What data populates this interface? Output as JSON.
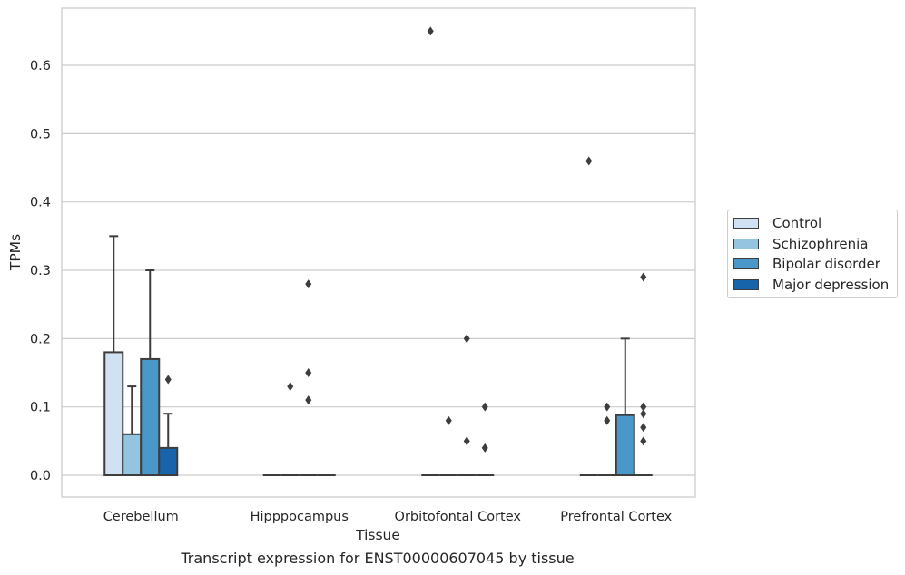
{
  "chart_data": {
    "type": "boxplot",
    "caption": "Transcript expression for ENST00000607045 by tissue",
    "xlabel": "Tissue",
    "ylabel": "TPMs",
    "ylim": [
      -0.032,
      0.685
    ],
    "yticks": [
      "0.0",
      "0.1",
      "0.2",
      "0.3",
      "0.4",
      "0.5",
      "0.6"
    ],
    "grid": true,
    "legend_position": "right",
    "categories": [
      "Cerebellum",
      "Hipppocampus",
      "Orbitofontal Cortex",
      "Prefrontal Cortex"
    ],
    "series": [
      {
        "name": "Control",
        "color": "#d0e1f2",
        "boxes": [
          {
            "q1": 0,
            "median": 0,
            "q3": 0.18,
            "whisker_low": 0,
            "whisker_high": 0.35,
            "outliers": []
          },
          {
            "q1": 0,
            "median": 0,
            "q3": 0,
            "whisker_low": 0,
            "whisker_high": 0,
            "outliers": []
          },
          {
            "q1": 0,
            "median": 0,
            "q3": 0,
            "whisker_low": 0,
            "whisker_high": 0,
            "outliers": [
              0.65
            ]
          },
          {
            "q1": 0,
            "median": 0,
            "q3": 0,
            "whisker_low": 0,
            "whisker_high": 0,
            "outliers": [
              0.46
            ]
          }
        ]
      },
      {
        "name": "Schizophrenia",
        "color": "#94c4df",
        "boxes": [
          {
            "q1": 0,
            "median": 0,
            "q3": 0.06,
            "whisker_low": 0,
            "whisker_high": 0.13,
            "outliers": []
          },
          {
            "q1": 0,
            "median": 0,
            "q3": 0,
            "whisker_low": 0,
            "whisker_high": 0,
            "outliers": [
              0.13
            ]
          },
          {
            "q1": 0,
            "median": 0,
            "q3": 0,
            "whisker_low": 0,
            "whisker_high": 0,
            "outliers": [
              0.08
            ]
          },
          {
            "q1": 0,
            "median": 0,
            "q3": 0,
            "whisker_low": 0,
            "whisker_high": 0,
            "outliers": [
              0.1,
              0.08
            ]
          }
        ]
      },
      {
        "name": "Bipolar disorder",
        "color": "#4a98c9",
        "boxes": [
          {
            "q1": 0,
            "median": 0,
            "q3": 0.17,
            "whisker_low": 0,
            "whisker_high": 0.3,
            "outliers": []
          },
          {
            "q1": 0,
            "median": 0,
            "q3": 0,
            "whisker_low": 0,
            "whisker_high": 0,
            "outliers": [
              0.28,
              0.15,
              0.11
            ]
          },
          {
            "q1": 0,
            "median": 0,
            "q3": 0,
            "whisker_low": 0,
            "whisker_high": 0,
            "outliers": [
              0.2,
              0.05
            ]
          },
          {
            "q1": 0,
            "median": 0,
            "q3": 0.088,
            "whisker_low": 0,
            "whisker_high": 0.2,
            "outliers": []
          }
        ]
      },
      {
        "name": "Major depression",
        "color": "#1764ab",
        "boxes": [
          {
            "q1": 0,
            "median": 0,
            "q3": 0.04,
            "whisker_low": 0,
            "whisker_high": 0.09,
            "outliers": [
              0.14
            ]
          },
          {
            "q1": 0,
            "median": 0,
            "q3": 0,
            "whisker_low": 0,
            "whisker_high": 0,
            "outliers": []
          },
          {
            "q1": 0,
            "median": 0,
            "q3": 0,
            "whisker_low": 0,
            "whisker_high": 0,
            "outliers": [
              0.1,
              0.04
            ]
          },
          {
            "q1": 0,
            "median": 0,
            "q3": 0,
            "whisker_low": 0,
            "whisker_high": 0,
            "outliers": [
              0.09,
              0.07,
              0.05,
              0.29,
              0.1
            ]
          }
        ]
      }
    ]
  }
}
